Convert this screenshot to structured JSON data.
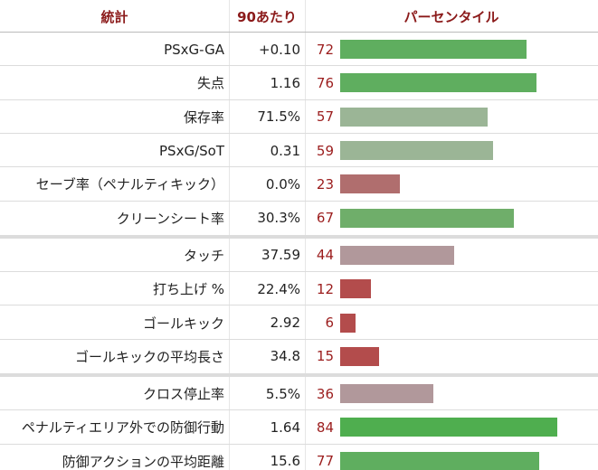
{
  "header": {
    "stat": "統計",
    "per90": "90あたり",
    "percentile": "パーセンタイル"
  },
  "groups": [
    {
      "rows": [
        {
          "stat": "PSxG-GA",
          "per90": "+0.10",
          "percentile": 72,
          "color": "#5fae5f"
        },
        {
          "stat": "失点",
          "per90": "1.16",
          "percentile": 76,
          "color": "#5fae5f"
        },
        {
          "stat": "保存率",
          "per90": "71.5%",
          "percentile": 57,
          "color": "#9bb596"
        },
        {
          "stat": "PSxG/SoT",
          "per90": "0.31",
          "percentile": 59,
          "color": "#9bb596"
        },
        {
          "stat": "セーブ率（ペナルティキック）",
          "per90": "0.0%",
          "percentile": 23,
          "color": "#b06e6e"
        },
        {
          "stat": "クリーンシート率",
          "per90": "30.3%",
          "percentile": 67,
          "color": "#6fae6a"
        }
      ]
    },
    {
      "rows": [
        {
          "stat": "タッチ",
          "per90": "37.59",
          "percentile": 44,
          "color": "#b1989b"
        },
        {
          "stat": "打ち上げ %",
          "per90": "22.4%",
          "percentile": 12,
          "color": "#b34c4c"
        },
        {
          "stat": "ゴールキック",
          "per90": "2.92",
          "percentile": 6,
          "color": "#b34c4c"
        },
        {
          "stat": "ゴールキックの平均長さ",
          "per90": "34.8",
          "percentile": 15,
          "color": "#b34c4c"
        }
      ]
    },
    {
      "rows": [
        {
          "stat": "クロス停止率",
          "per90": "5.5%",
          "percentile": 36,
          "color": "#b1989b"
        },
        {
          "stat": "ペナルティエリア外での防御行動",
          "per90": "1.64",
          "percentile": 84,
          "color": "#4fae4f"
        },
        {
          "stat": "防御アクションの平均距離",
          "per90": "15.6",
          "percentile": 77,
          "color": "#5fae5f"
        }
      ]
    }
  ]
}
